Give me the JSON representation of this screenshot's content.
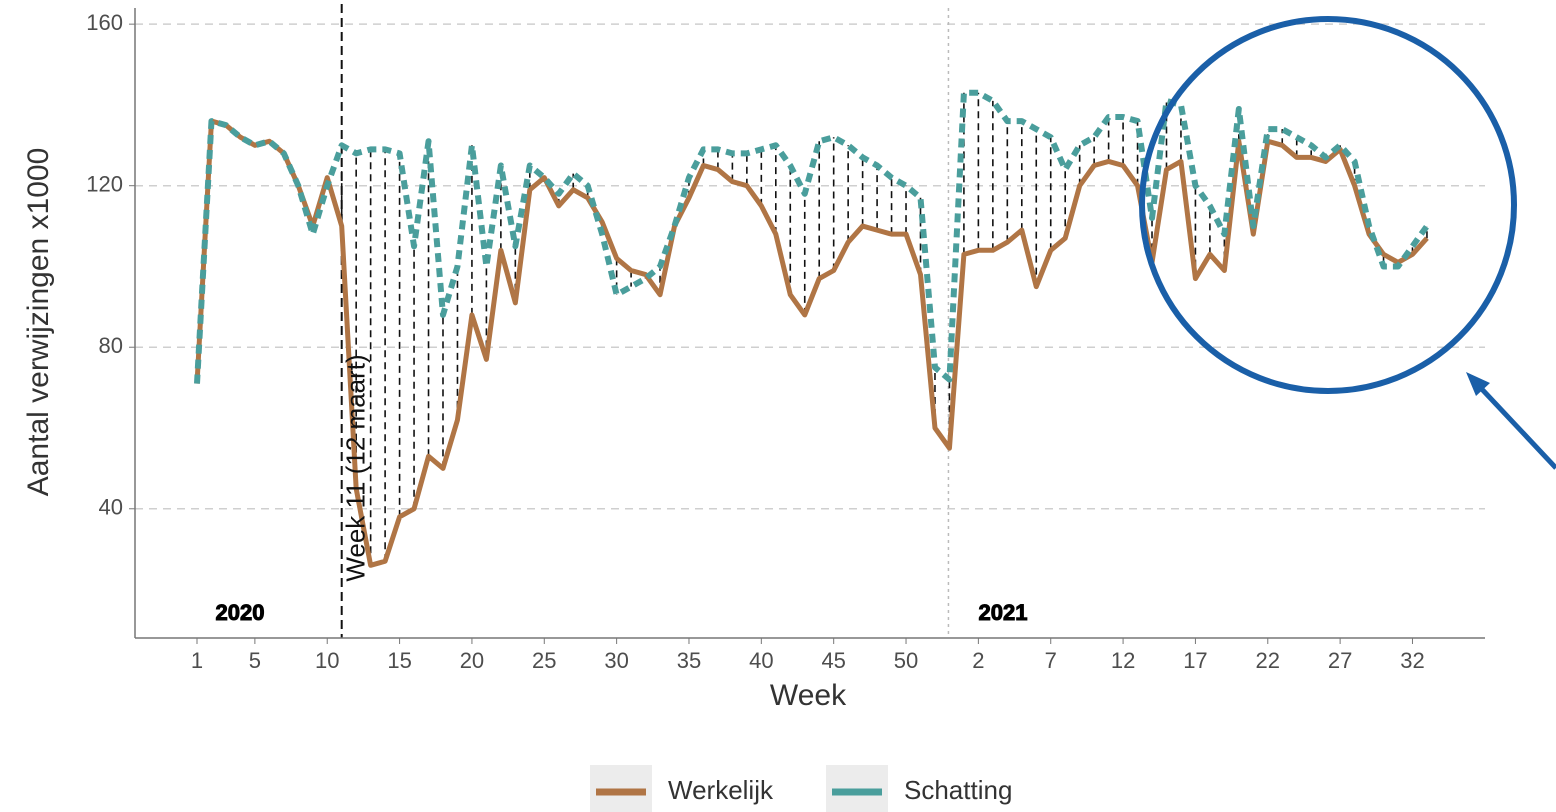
{
  "chart_data": {
    "type": "line",
    "x_label": "Week",
    "y_label": "Aantal verwijzingen x1000",
    "categories": [
      "1",
      null,
      null,
      null,
      "5",
      null,
      null,
      null,
      null,
      "10",
      null,
      null,
      null,
      null,
      "15",
      null,
      null,
      null,
      null,
      "20",
      null,
      null,
      null,
      null,
      "25",
      null,
      null,
      null,
      null,
      "30",
      null,
      null,
      null,
      null,
      "35",
      null,
      null,
      null,
      null,
      "40",
      null,
      null,
      null,
      null,
      "45",
      null,
      null,
      null,
      null,
      "50",
      null,
      null,
      null,
      null,
      "2",
      null,
      null,
      null,
      null,
      "7",
      null,
      null,
      null,
      null,
      "12",
      null,
      null,
      null,
      null,
      "17",
      null,
      null,
      null,
      null,
      "22",
      null,
      null,
      null,
      null,
      "27",
      null,
      null,
      null,
      null,
      "32",
      null
    ],
    "series": [
      {
        "name": "Werkelijk",
        "color": "#b07545",
        "values": [
          71,
          136,
          135,
          132,
          130,
          131,
          128,
          120,
          110,
          122,
          110,
          45,
          26,
          27,
          38,
          40,
          53,
          50,
          62,
          88,
          77,
          104,
          91,
          119,
          122,
          115,
          119,
          117,
          111,
          102,
          99,
          98,
          93,
          110,
          117,
          125,
          124,
          121,
          120,
          115,
          108,
          93,
          88,
          97,
          99,
          106,
          110,
          109,
          108,
          108,
          98,
          60,
          55,
          103,
          104,
          104,
          106,
          109,
          95,
          104,
          107,
          120,
          125,
          126,
          125,
          120,
          101,
          124,
          126,
          97,
          103,
          99,
          131,
          108,
          131,
          130,
          127,
          127,
          126,
          129,
          120,
          108,
          103,
          101,
          103,
          107
        ]
      },
      {
        "name": "Schatting",
        "color": "#4a9e9c",
        "values": [
          71,
          136,
          135,
          132,
          130,
          131,
          128,
          120,
          108,
          120,
          130,
          128,
          129,
          129,
          128,
          105,
          131,
          88,
          100,
          130,
          100,
          125,
          105,
          125,
          122,
          118,
          123,
          120,
          108,
          93,
          95,
          97,
          100,
          110,
          122,
          129,
          129,
          128,
          128,
          129,
          130,
          125,
          118,
          131,
          132,
          130,
          127,
          125,
          122,
          120,
          117,
          75,
          72,
          143,
          143,
          141,
          136,
          136,
          134,
          132,
          124,
          130,
          132,
          137,
          137,
          136,
          112,
          141,
          140,
          120,
          115,
          108,
          139,
          110,
          134,
          134,
          132,
          130,
          127,
          130,
          126,
          110,
          100,
          100,
          105,
          110
        ]
      }
    ],
    "annotations": [
      "Week 11 (12 maart)",
      "2020",
      "2021"
    ],
    "ylim": [
      8,
      164
    ],
    "yticks": [
      40,
      80,
      120,
      160
    ],
    "grid": true
  }
}
